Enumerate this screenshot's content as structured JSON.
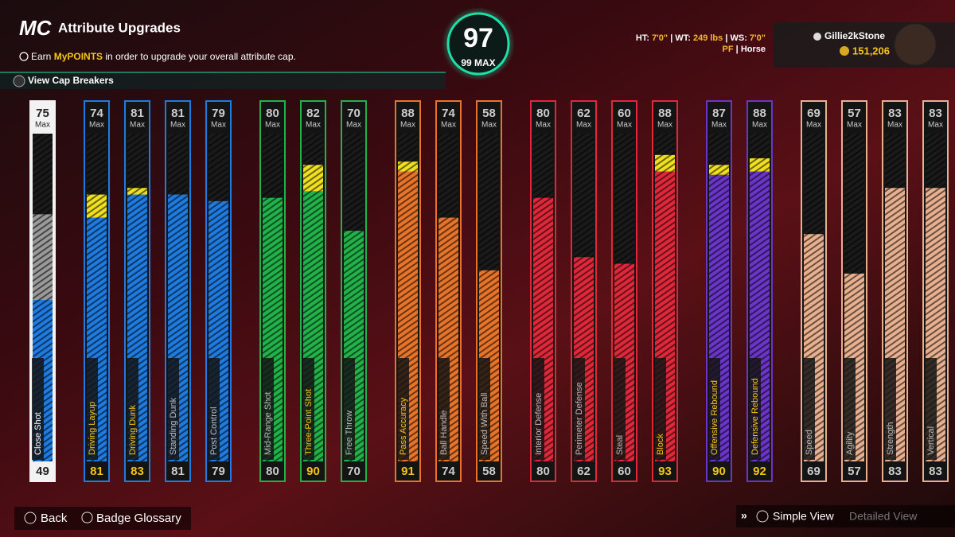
{
  "header": {
    "logo": "MC",
    "title": "Attribute Upgrades",
    "info_prefix": "Earn",
    "info_highlight": "MyPOINTS",
    "info_suffix": "in order to upgrade your overall attribute cap.",
    "cap_breakers": "View Cap Breakers"
  },
  "overall": {
    "value": 97,
    "max": 99,
    "max_label": "MAX"
  },
  "player": {
    "ht_label": "HT:",
    "ht": "7'0\"",
    "wt_label": "WT:",
    "wt": "249 lbs",
    "ws_label": "WS:",
    "ws": "7'0\"",
    "position": "PF",
    "archetype": "Horse",
    "gamertag": "Gillie2kStone",
    "vc": "151,206"
  },
  "attributes": {
    "max_word": "Max",
    "groups": [
      {
        "color": "#f2f2f2",
        "fill": "#1e7be0",
        "items": [
          {
            "name": "Close Shot",
            "cap": 75,
            "current": 49
          }
        ]
      },
      {
        "color": "#1e7be0",
        "fill": "#1e7be0",
        "items": [
          {
            "name": "Driving Layup",
            "cap": 74,
            "current": 81
          },
          {
            "name": "Driving Dunk",
            "cap": 81,
            "current": 83
          },
          {
            "name": "Standing Dunk",
            "cap": 81,
            "current": 81
          },
          {
            "name": "Post Control",
            "cap": 79,
            "current": 79
          }
        ]
      },
      {
        "color": "#22b24a",
        "fill": "#22b24a",
        "items": [
          {
            "name": "Mid-Range Shot",
            "cap": 80,
            "current": 80
          },
          {
            "name": "Three-Point Shot",
            "cap": 82,
            "current": 90
          },
          {
            "name": "Free Throw",
            "cap": 70,
            "current": 70
          }
        ]
      },
      {
        "color": "#e8742a",
        "fill": "#e8742a",
        "items": [
          {
            "name": "Pass Accuracy",
            "cap": 88,
            "current": 91
          },
          {
            "name": "Ball Handle",
            "cap": 74,
            "current": 74
          },
          {
            "name": "Speed With Ball",
            "cap": 58,
            "current": 58
          }
        ]
      },
      {
        "color": "#e0283a",
        "fill": "#e0283a",
        "items": [
          {
            "name": "Interior Defense",
            "cap": 80,
            "current": 80
          },
          {
            "name": "Perimeter Defense",
            "cap": 62,
            "current": 62
          },
          {
            "name": "Steal",
            "cap": 60,
            "current": 60
          },
          {
            "name": "Block",
            "cap": 88,
            "current": 93
          }
        ]
      },
      {
        "color": "#6a35c8",
        "fill": "#6a35c8",
        "items": [
          {
            "name": "Offensive Rebound",
            "cap": 87,
            "current": 90
          },
          {
            "name": "Defensive Rebound",
            "cap": 88,
            "current": 92
          }
        ]
      },
      {
        "color": "#e8b08f",
        "fill": "#e8b08f",
        "items": [
          {
            "name": "Speed",
            "cap": 69,
            "current": 69
          },
          {
            "name": "Agility",
            "cap": 57,
            "current": 57
          },
          {
            "name": "Strength",
            "cap": 83,
            "current": 83
          },
          {
            "name": "Vertical",
            "cap": 83,
            "current": 83
          }
        ]
      }
    ]
  },
  "footer": {
    "back": "Back",
    "glossary": "Badge Glossary",
    "simple": "Simple View",
    "detailed": "Detailed View"
  }
}
